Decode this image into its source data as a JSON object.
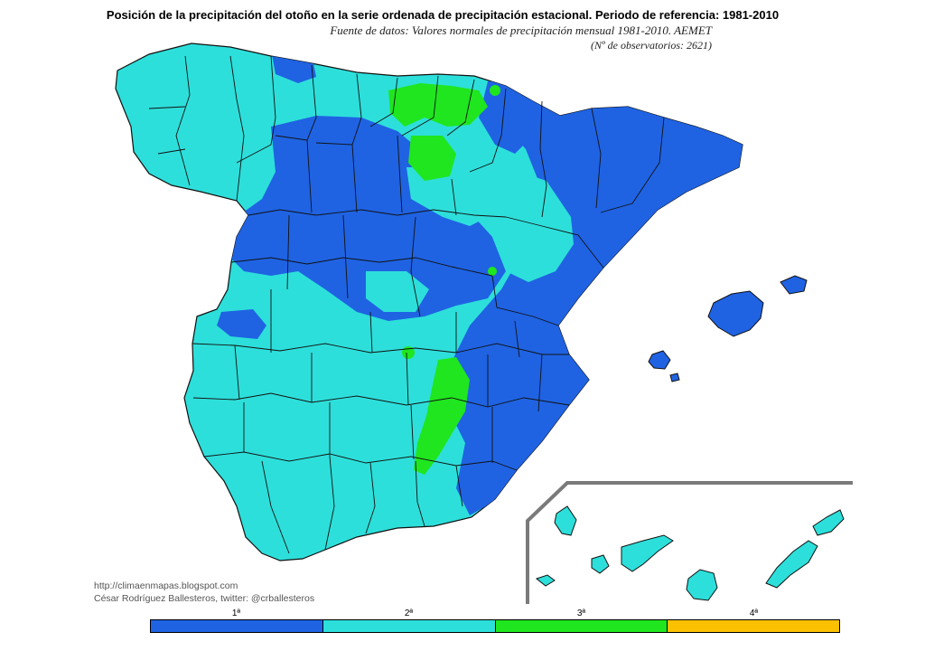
{
  "header": {
    "title": "Posición de la precipitación del otoño en la serie ordenada de precipitación estacional. Periodo de referencia: 1981-2010",
    "source_line1": "Fuente de datos: Valores normales de precipitación mensual 1981-2010. AEMET",
    "source_line2": "(Nº de observatorios: 2621)"
  },
  "credits": {
    "blog": "http://climaenmapas.blogspot.com",
    "author": "César Rodríguez Ballesteros, twitter: @crballesteros"
  },
  "legend": {
    "items": [
      {
        "label": "1ª",
        "color": "#1f63e3"
      },
      {
        "label": "2ª",
        "color": "#2ddfda"
      },
      {
        "label": "3ª",
        "color": "#1fe61f"
      },
      {
        "label": "4ª",
        "color": "#fbc000"
      }
    ]
  },
  "map": {
    "colors": {
      "first": "#1f63e3",
      "second": "#2ddfda",
      "third": "#1fe61f",
      "border": "#111111",
      "inset_frame": "#7a7a7a"
    },
    "regions": [
      "Península Ibérica",
      "Islas Baleares",
      "Islas Canarias"
    ]
  }
}
